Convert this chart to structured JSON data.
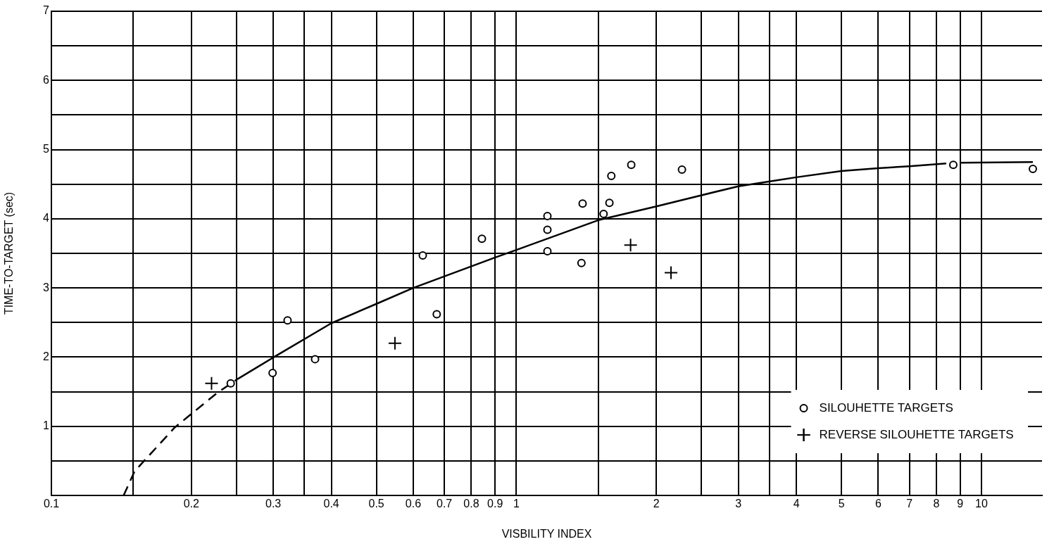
{
  "chart_data": {
    "type": "scatter",
    "xlabel": "VISBILITY INDEX",
    "ylabel": "TIME-TO-TARGET (sec)",
    "log": "x",
    "grid": true,
    "legend": "bottom right",
    "xlim": [
      0.1,
      13.5
    ],
    "ylim": [
      0,
      7
    ],
    "xticks": [
      0.1,
      {
        "value": 0.15,
        "label": null
      },
      0.2,
      {
        "value": 0.25,
        "label": null
      },
      0.3,
      {
        "value": 0.35,
        "label": null
      },
      0.4,
      0.5,
      0.6,
      0.7,
      0.8,
      0.9,
      1,
      {
        "value": 1.5,
        "label": null
      },
      2,
      {
        "value": 2.5,
        "label": null
      },
      3,
      {
        "value": 3.5,
        "label": null
      },
      4,
      5,
      6,
      7,
      8,
      9,
      10
    ],
    "yticks": [
      {
        "value": 0,
        "label": null
      },
      {
        "value": 0.5,
        "label": null
      },
      1,
      {
        "value": 1.5,
        "label": null
      },
      2,
      {
        "value": 2.5,
        "label": null
      },
      3,
      {
        "value": 3.5,
        "label": null
      },
      4,
      {
        "value": 4.5,
        "label": null
      },
      5,
      {
        "value": 5.5,
        "label": null
      },
      6,
      {
        "value": 6.5,
        "label": null
      },
      7
    ],
    "series": [
      {
        "name": "SILOUHETTE TARGETS",
        "marker": "circle",
        "color": "#000000",
        "x": [
          0.243,
          0.299,
          0.322,
          0.369,
          0.629,
          0.674,
          0.843,
          1.166,
          1.166,
          1.166,
          1.388,
          1.38,
          1.54,
          1.585,
          1.6,
          1.766,
          2.27,
          8.7,
          12.9
        ],
        "values": [
          1.62,
          1.77,
          2.53,
          1.97,
          3.47,
          2.62,
          3.71,
          4.04,
          3.84,
          3.53,
          4.22,
          3.36,
          4.07,
          4.23,
          4.62,
          4.78,
          4.71,
          4.78,
          4.72
        ]
      },
      {
        "name": "REVERSE SILOUHETTE TARGETS",
        "marker": "cross",
        "color": "#000000",
        "x": [
          0.221,
          0.548,
          1.76,
          2.15
        ],
        "values": [
          1.62,
          2.2,
          3.62,
          3.22
        ]
      },
      {
        "type": "line",
        "marker": "none",
        "line_style": "dashed",
        "color": "#000000",
        "x": [
          0.143,
          0.151,
          0.184,
          0.227,
          0.251
        ],
        "values": [
          0,
          0.35,
          0.98,
          1.48,
          1.68
        ]
      },
      {
        "type": "line",
        "marker": "none",
        "line_style": "solid",
        "color": "#000000",
        "x": [
          0.251,
          0.301,
          0.4,
          0.5,
          0.6,
          0.9,
          1.0,
          1.5,
          2.0,
          3.0,
          4.0,
          5,
          6,
          7,
          8.4
        ],
        "values": [
          1.68,
          2.0,
          2.49,
          2.77,
          3.0,
          3.44,
          3.55,
          3.98,
          4.18,
          4.47,
          4.6,
          4.69,
          4.73,
          4.76,
          4.8
        ]
      },
      {
        "type": "line",
        "marker": "none",
        "line_style": "solid",
        "color": "#000000",
        "x": [
          9.0,
          12.9
        ],
        "values": [
          4.81,
          4.82
        ]
      }
    ]
  }
}
